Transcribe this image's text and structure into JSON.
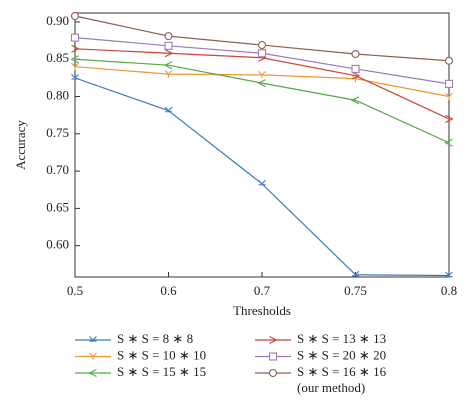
{
  "chart_data": {
    "type": "line",
    "x_label": "Thresholds",
    "y_label": "Accuracy",
    "categories": [
      "0.5",
      "0.6",
      "0.7",
      "0.75",
      "0.8"
    ],
    "ylim": [
      0.558,
      0.912
    ],
    "yticks": [
      {
        "value": 0.6,
        "label": "0.60"
      },
      {
        "value": 0.65,
        "label": "0.65"
      },
      {
        "value": 0.7,
        "label": "0.70"
      },
      {
        "value": 0.75,
        "label": "0.75"
      },
      {
        "value": 0.8,
        "label": "0.80"
      },
      {
        "value": 0.85,
        "label": "0.85"
      },
      {
        "value": 0.9,
        "label": "0.90"
      }
    ],
    "grid": false,
    "series": [
      {
        "name": "S ∗ S = 8 ∗ 8",
        "color": "#3b7cc0",
        "marker": "tick",
        "values": [
          0.825,
          0.781,
          0.683,
          0.561,
          0.56
        ]
      },
      {
        "name": "S ∗ S = 10 ∗ 10",
        "color": "#eb9733",
        "marker": "y",
        "values": [
          0.84,
          0.83,
          0.829,
          0.824,
          0.8
        ]
      },
      {
        "name": "S ∗ S = 15 ∗ 15",
        "color": "#55a84a",
        "marker": "left",
        "values": [
          0.85,
          0.842,
          0.818,
          0.795,
          0.738
        ]
      },
      {
        "name": "S ∗ S = 13 ∗ 13",
        "color": "#c9453a",
        "marker": "right",
        "values": [
          0.864,
          0.858,
          0.852,
          0.828,
          0.77
        ]
      },
      {
        "name": "S ∗ S = 20 ∗ 20",
        "color": "#9c7cb9",
        "marker": "square",
        "values": [
          0.879,
          0.868,
          0.858,
          0.837,
          0.817
        ]
      },
      {
        "name": "S ∗ S = 16 ∗ 16",
        "note": "(our method)",
        "color": "#8d5f53",
        "marker": "circle",
        "values": [
          0.908,
          0.881,
          0.869,
          0.857,
          0.848
        ]
      }
    ]
  }
}
